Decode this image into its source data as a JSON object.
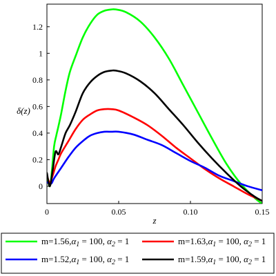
{
  "chart_data": {
    "type": "line",
    "xlabel": "z",
    "ylabel": "δ(z)",
    "xlim": [
      0,
      0.15
    ],
    "ylim": [
      -0.13,
      1.37
    ],
    "x_ticks": [
      0,
      0.05,
      0.1,
      0.15
    ],
    "x_tick_labels": [
      "0",
      "0.05",
      "0.10",
      "0.15"
    ],
    "y_ticks": [
      0,
      0.2,
      0.4,
      0.6,
      0.8,
      1,
      1.2
    ],
    "y_tick_labels": [
      "0",
      "0.2",
      "0.4",
      "0.6",
      "0.8",
      "1",
      "1.2"
    ],
    "grid": false,
    "legend_position": "bottom",
    "series": [
      {
        "name": "m=1.56,α1 = 100, α2 = 1",
        "legend": {
          "prefix": "m=1.56,",
          "a1": "α",
          "a1sub": "1",
          "a1val": " = 100, ",
          "a2": "α",
          "a2sub": "2",
          "a2val": " = 1"
        },
        "color": "#00ff00",
        "x": [
          0,
          0.002,
          0.0035,
          0.005,
          0.0065,
          0.008,
          0.01,
          0.013,
          0.016,
          0.02,
          0.025,
          0.03,
          0.035,
          0.04,
          0.045,
          0.048,
          0.055,
          0.065,
          0.075,
          0.085,
          0.095,
          0.105,
          0.115,
          0.125,
          0.135,
          0.145,
          0.15
        ],
        "y": [
          0.08,
          0.0,
          0.12,
          0.3,
          0.38,
          0.45,
          0.55,
          0.72,
          0.86,
          0.98,
          1.12,
          1.22,
          1.29,
          1.32,
          1.33,
          1.33,
          1.31,
          1.24,
          1.12,
          0.96,
          0.76,
          0.56,
          0.36,
          0.17,
          0.02,
          -0.09,
          -0.13
        ]
      },
      {
        "name": "m=1.63,α1 = 100, α2 = 1",
        "legend": {
          "prefix": "m=1.63,",
          "a1": "α",
          "a1sub": "1",
          "a1val": " = 100, ",
          "a2": "α",
          "a2sub": "2",
          "a2val": " = 1"
        },
        "color": "#ff0000",
        "x": [
          0,
          0.002,
          0.004,
          0.006,
          0.008,
          0.01,
          0.015,
          0.02,
          0.025,
          0.03,
          0.035,
          0.04,
          0.045,
          0.05,
          0.06,
          0.07,
          0.08,
          0.09,
          0.1,
          0.11,
          0.12,
          0.13,
          0.14,
          0.15
        ],
        "y": [
          0.08,
          0.03,
          0.08,
          0.15,
          0.2,
          0.25,
          0.34,
          0.43,
          0.5,
          0.54,
          0.57,
          0.58,
          0.58,
          0.57,
          0.52,
          0.46,
          0.38,
          0.29,
          0.21,
          0.13,
          0.06,
          0.0,
          -0.06,
          -0.11
        ]
      },
      {
        "name": "m=1.52,α1 = 100, α2 = 1",
        "legend": {
          "prefix": "m=1.52,",
          "a1": "α",
          "a1sub": "1",
          "a1val": " = 100, ",
          "a2": "α",
          "a2sub": "2",
          "a2val": " = 1"
        },
        "color": "#0000ff",
        "x": [
          0,
          0.003,
          0.005,
          0.01,
          0.015,
          0.02,
          0.025,
          0.03,
          0.035,
          0.04,
          0.045,
          0.05,
          0.06,
          0.07,
          0.08,
          0.09,
          0.1,
          0.11,
          0.12,
          0.13,
          0.14,
          0.15
        ],
        "y": [
          0.03,
          0.02,
          0.06,
          0.14,
          0.22,
          0.29,
          0.34,
          0.38,
          0.4,
          0.41,
          0.41,
          0.41,
          0.39,
          0.35,
          0.31,
          0.25,
          0.19,
          0.14,
          0.08,
          0.04,
          0.0,
          -0.03
        ]
      },
      {
        "name": "m=1.59,α1 = 100, α2 = 1",
        "legend": {
          "prefix": "m=1.59,",
          "a1": "α",
          "a1sub": "1",
          "a1val": " = 100, ",
          "a2": "α",
          "a2sub": "2",
          "a2val": " = 1"
        },
        "color": "#000000",
        "x": [
          0,
          0.002,
          0.004,
          0.006,
          0.008,
          0.01,
          0.013,
          0.016,
          0.02,
          0.025,
          0.03,
          0.035,
          0.04,
          0.045,
          0.048,
          0.055,
          0.065,
          0.075,
          0.085,
          0.095,
          0.105,
          0.115,
          0.125,
          0.135,
          0.145,
          0.15
        ],
        "y": [
          0.1,
          0.0,
          0.12,
          0.26,
          0.24,
          0.3,
          0.4,
          0.46,
          0.56,
          0.7,
          0.78,
          0.83,
          0.86,
          0.87,
          0.87,
          0.85,
          0.79,
          0.7,
          0.58,
          0.46,
          0.33,
          0.21,
          0.1,
          0.0,
          -0.08,
          -0.11
        ]
      }
    ]
  }
}
